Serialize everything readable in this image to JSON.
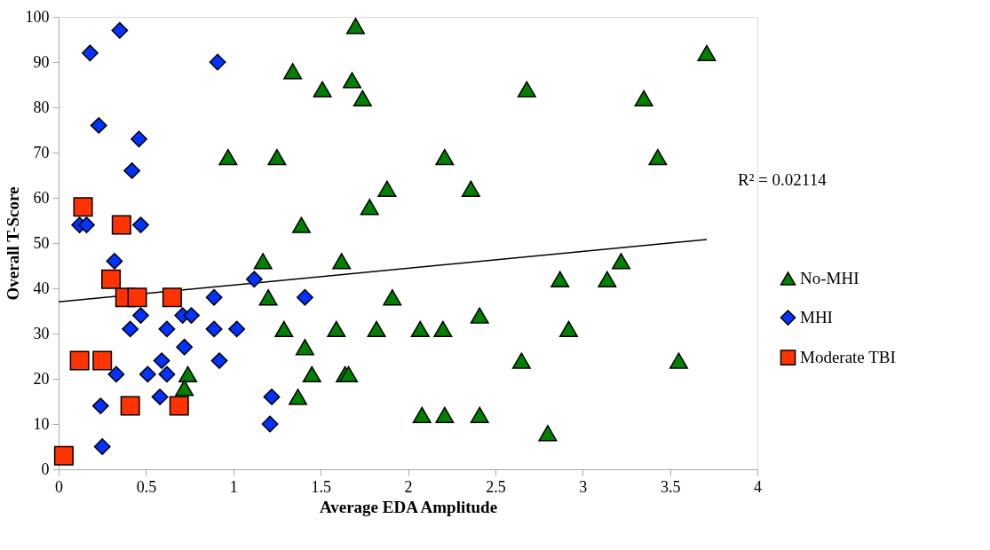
{
  "chart_data": {
    "type": "scatter",
    "xlabel": "Average EDA Amplitude",
    "ylabel": "Overall T-Score",
    "xlim": [
      0,
      4
    ],
    "xticks": [
      0,
      0.5,
      1,
      1.5,
      2,
      2.5,
      3,
      3.5,
      4
    ],
    "ylim": [
      0,
      100
    ],
    "yticks": [
      0,
      10,
      20,
      30,
      40,
      50,
      60,
      70,
      80,
      90,
      100
    ],
    "grid": false,
    "legend": "right",
    "annotations": [
      "R² = 0.02114"
    ],
    "series": [
      {
        "name": "No-MHI",
        "color": "#008000",
        "marker": "triangle",
        "x": [
          1.7,
          3.71,
          1.34,
          1.68,
          1.51,
          2.68,
          1.74,
          3.35,
          0.97,
          1.25,
          2.21,
          3.43,
          1.88,
          2.36,
          1.78,
          1.39,
          1.17,
          1.62,
          3.22,
          2.87,
          3.14,
          1.2,
          1.91,
          2.41,
          1.29,
          1.59,
          1.82,
          2.07,
          2.2,
          2.92,
          1.41,
          0.74,
          1.45,
          1.64,
          1.66,
          0.72,
          2.65,
          3.55,
          1.37,
          2.08,
          2.21,
          2.41,
          2.8
        ],
        "values": [
          98,
          92,
          88,
          86,
          84,
          84,
          82,
          82,
          69,
          69,
          69,
          69,
          62,
          62,
          58,
          54,
          46,
          46,
          46,
          42,
          42,
          38,
          38,
          34,
          31,
          31,
          31,
          31,
          31,
          31,
          27,
          21,
          21,
          21,
          21,
          18,
          24,
          24,
          16,
          12,
          12,
          12,
          8
        ]
      },
      {
        "name": "MHI",
        "color": "#0033ff",
        "marker": "diamond",
        "x": [
          0.35,
          0.18,
          0.91,
          0.23,
          0.46,
          0.42,
          0.12,
          0.16,
          0.47,
          0.32,
          1.12,
          0.89,
          1.41,
          0.47,
          0.71,
          0.76,
          0.41,
          0.62,
          0.89,
          1.02,
          0.72,
          0.59,
          0.92,
          0.33,
          0.51,
          0.62,
          0.58,
          1.22,
          0.24,
          1.21,
          0.25
        ],
        "values": [
          97,
          92,
          90,
          76,
          73,
          66,
          54,
          54,
          54,
          46,
          42,
          38,
          38,
          34,
          34,
          34,
          31,
          31,
          31,
          31,
          27,
          24,
          24,
          21,
          21,
          21,
          16,
          16,
          14,
          10,
          5
        ]
      },
      {
        "name": "Moderate TBI",
        "color": "#ff3300",
        "marker": "square",
        "x": [
          0.14,
          0.36,
          0.3,
          0.38,
          0.45,
          0.65,
          0.12,
          0.25,
          0.41,
          0.69,
          0.03
        ],
        "values": [
          58,
          54,
          42,
          38,
          38,
          38,
          24,
          24,
          14,
          14,
          3
        ]
      },
      {
        "type": "line",
        "color": "#000000",
        "x": [
          0,
          3.71
        ],
        "values": [
          37,
          50.8
        ]
      }
    ]
  }
}
